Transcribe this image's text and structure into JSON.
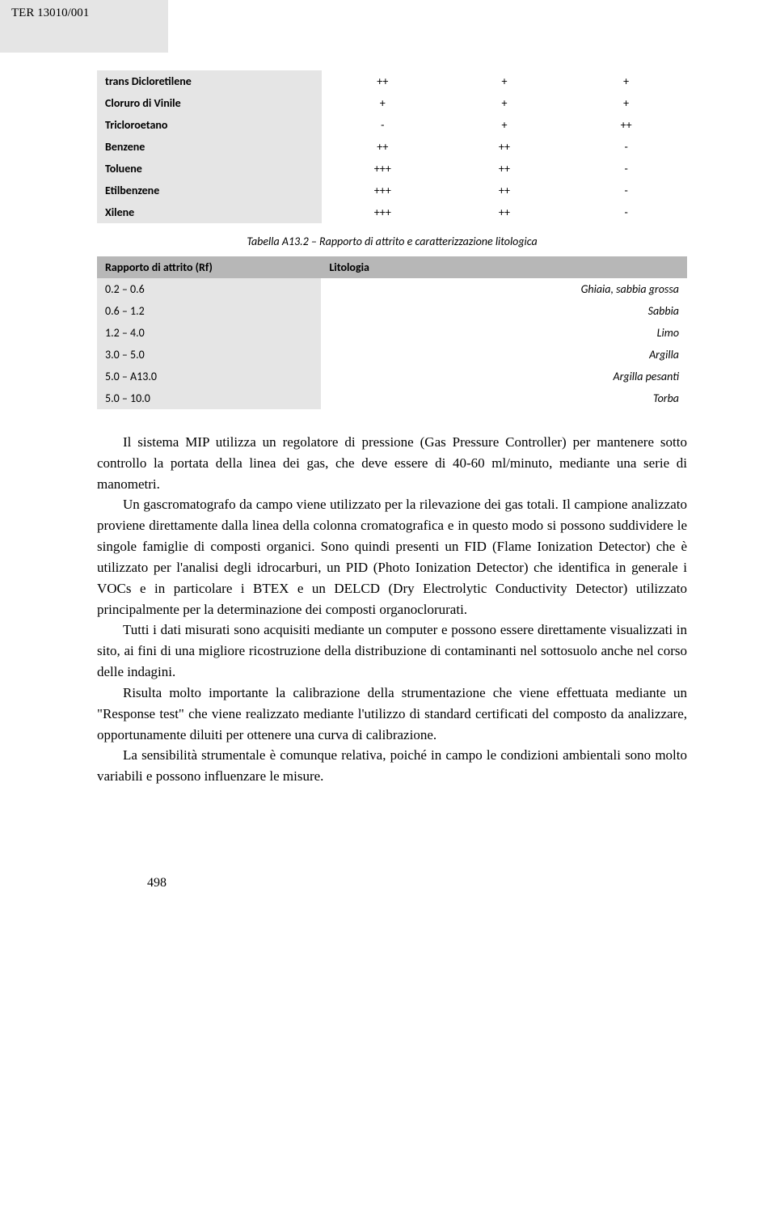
{
  "header": {
    "doc_ref": "TER 13010/001"
  },
  "table1": {
    "rows": [
      {
        "name": "trans Dicloretilene",
        "v1": "++",
        "v2": "+",
        "v3": "+"
      },
      {
        "name": "Cloruro di Vinile",
        "v1": "+",
        "v2": "+",
        "v3": "+"
      },
      {
        "name": "Tricloroetano",
        "v1": "-",
        "v2": "+",
        "v3": "++"
      },
      {
        "name": "Benzene",
        "v1": "++",
        "v2": "++",
        "v3": "-"
      },
      {
        "name": "Toluene",
        "v1": "+++",
        "v2": "++",
        "v3": "-"
      },
      {
        "name": "Etilbenzene",
        "v1": "+++",
        "v2": "++",
        "v3": "-"
      },
      {
        "name": "Xilene",
        "v1": "+++",
        "v2": "++",
        "v3": "-"
      }
    ]
  },
  "caption2": "Tabella A13.2 – Rapporto di attrito e caratterizzazione litologica",
  "table2": {
    "h1": "Rapporto di attrito (Rf)",
    "h2": "Litologia",
    "rows": [
      {
        "rf": "0.2 – 0.6",
        "lit": "Ghiaia, sabbia grossa"
      },
      {
        "rf": "0.6 – 1.2",
        "lit": "Sabbia"
      },
      {
        "rf": "1.2 – 4.0",
        "lit": "Limo"
      },
      {
        "rf": "3.0 – 5.0",
        "lit": "Argilla"
      },
      {
        "rf": "5.0 – A13.0",
        "lit": "Argilla pesanti"
      },
      {
        "rf": "5.0 – 10.0",
        "lit": "Torba"
      }
    ]
  },
  "paragraphs": {
    "p1": "Il sistema MIP utilizza un regolatore di pressione (Gas Pressure Controller) per mantenere sotto controllo la portata della linea dei gas, che deve essere di 40-60 ml/minuto, mediante una serie di manometri.",
    "p2": "Un gascromatografo da campo viene utilizzato per la rilevazione dei gas totali. Il campione analizzato proviene direttamente dalla linea della colonna cromatografica e in questo modo si possono suddividere le singole famiglie di composti organici. Sono quindi presenti un FID (Flame Ionization Detector) che è utilizzato per l'analisi degli idrocarburi, un PID (Photo Ionization Detector) che identifica in generale i VOCs e in particolare i BTEX e un DELCD (Dry Electrolytic Conductivity Detector) utilizzato principalmente per la determinazione dei composti organoclorurati.",
    "p3": "Tutti i dati misurati sono acquisiti mediante un computer e possono essere direttamente visualizzati in sito, ai fini di una migliore ricostruzione della distribuzione di contaminanti nel sottosuolo anche nel corso delle indagini.",
    "p4": "Risulta molto importante la calibrazione della strumentazione che viene effettuata mediante un \"Response test\" che viene realizzato mediante l'utilizzo di standard certificati del composto da analizzare, opportunamente diluiti per ottenere una curva di calibrazione.",
    "p5": "La sensibilità strumentale è comunque relativa, poiché in campo le condizioni ambientali sono molto variabili e possono influenzare le misure."
  },
  "page_number": "498"
}
